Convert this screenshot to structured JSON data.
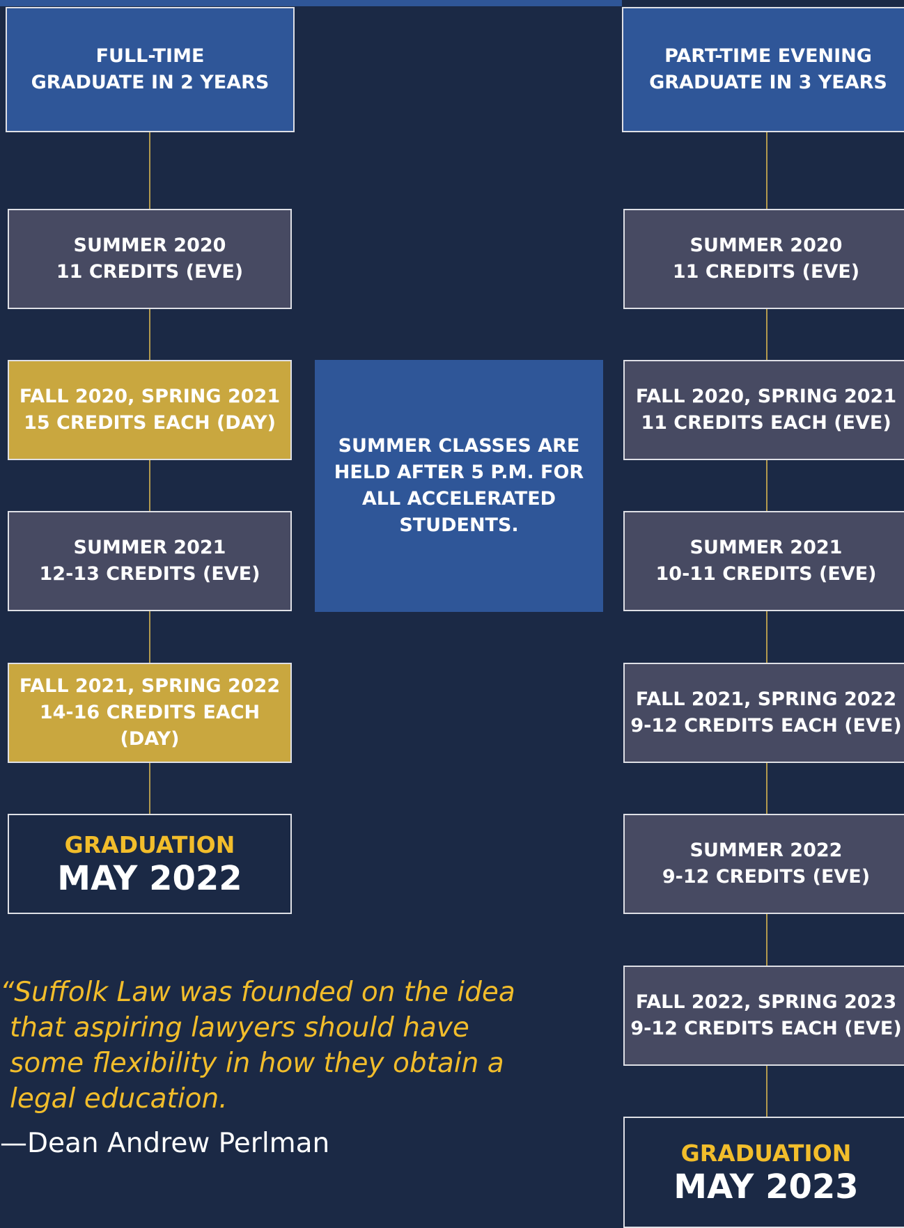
{
  "left_column": {
    "header": [
      "FULL-TIME",
      "GRADUATE IN 2 YEARS"
    ],
    "steps": [
      [
        "SUMMER 2020",
        "11 CREDITS (EVE)"
      ],
      [
        "FALL 2020, SPRING 2021",
        "15 CREDITS EACH (DAY)"
      ],
      [
        "SUMMER 2021",
        "12-13 CREDITS (EVE)"
      ],
      [
        "FALL 2021, SPRING 2022",
        "14-16 CREDITS EACH (DAY)"
      ]
    ],
    "graduation": {
      "label": "GRADUATION",
      "date": "MAY 2022"
    }
  },
  "right_column": {
    "header": [
      "PART-TIME EVENING",
      "GRADUATE IN 3 YEARS"
    ],
    "steps": [
      [
        "SUMMER 2020",
        "11 CREDITS (EVE)"
      ],
      [
        "FALL 2020, SPRING 2021",
        "11 CREDITS EACH (EVE)"
      ],
      [
        "SUMMER 2021",
        "10-11 CREDITS (EVE)"
      ],
      [
        "FALL 2021, SPRING 2022",
        "9-12 CREDITS EACH (EVE)"
      ],
      [
        "SUMMER 2022",
        "9-12 CREDITS (EVE)"
      ],
      [
        "FALL 2022, SPRING 2023",
        "9-12 CREDITS EACH (EVE)"
      ]
    ],
    "graduation": {
      "label": "GRADUATION",
      "date": "MAY 2023"
    }
  },
  "note": [
    "SUMMER CLASSES ARE",
    "HELD AFTER 5 P.M. FOR",
    "ALL ACCELERATED",
    "STUDENTS."
  ],
  "quote": {
    "lines": [
      "“Suffolk Law was founded on the idea",
      "that aspiring lawyers should have",
      "some flexibility in how they obtain a",
      "legal education."
    ],
    "attribution": "—Dean Andrew Perlman"
  }
}
